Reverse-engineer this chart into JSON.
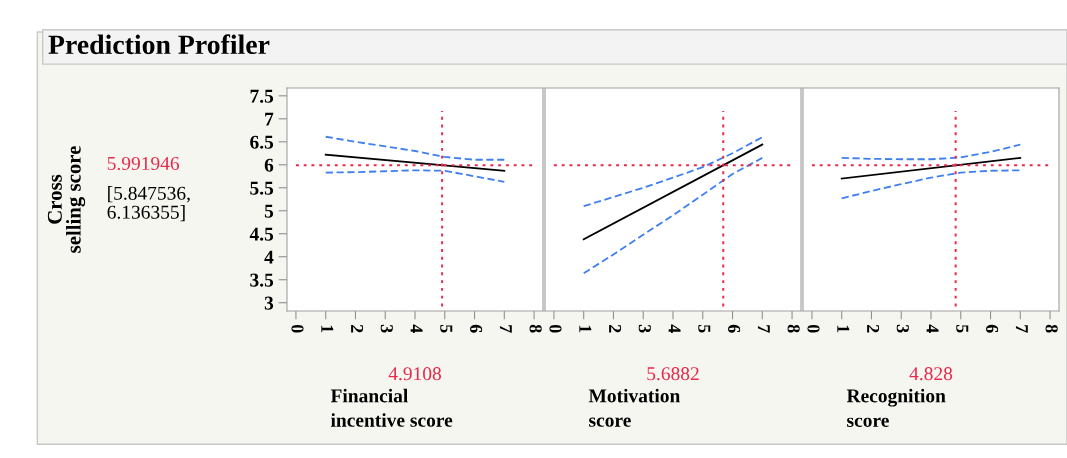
{
  "chart_data": [
    {
      "type": "line",
      "title": "Prediction Profiler",
      "ylabel": "Cross\nselling score",
      "xlabel": "Financial\nincentive score",
      "xlim": [
        -0.3,
        8.3
      ],
      "xticks": [
        0,
        1,
        2,
        3,
        4,
        5,
        6,
        7,
        8
      ],
      "ylim": [
        2.82,
        7.67
      ],
      "yticks": [
        3,
        3.5,
        4,
        4.5,
        5,
        5.5,
        6,
        6.5,
        7,
        7.5
      ],
      "series": [
        {
          "x": [
            1,
            7
          ],
          "values": [
            6.22,
            5.87
          ],
          "color": "#000000",
          "line_style": "solid"
        },
        {
          "x": [
            1,
            2,
            3,
            4,
            5,
            6,
            7
          ],
          "values": [
            6.61,
            6.5,
            6.4,
            6.3,
            6.17,
            6.11,
            6.11
          ],
          "color": "#3f7ff0",
          "line_style": "dashed"
        },
        {
          "x": [
            1,
            2,
            3,
            4,
            5,
            6,
            7
          ],
          "values": [
            5.83,
            5.84,
            5.86,
            5.88,
            5.87,
            5.75,
            5.63
          ],
          "color": "#3f7ff0",
          "line_style": "dashed"
        }
      ],
      "ref_lines": [
        {
          "axis": "x",
          "value": 4.9108,
          "label": "4.9108",
          "color": "#e8294a",
          "line_style": "dotted"
        },
        {
          "axis": "y",
          "value": 5.991946,
          "label": "5.991946",
          "color": "#e8294a",
          "line_style": "dotted"
        }
      ],
      "annotations": [
        "[5.847536,\n6.136355]"
      ],
      "grid": false,
      "legend": false
    },
    {
      "type": "line",
      "xlabel": "Motivation\nscore",
      "tick_labels": "x",
      "xlim": [
        -0.3,
        8.3
      ],
      "xticks": [
        0,
        1,
        2,
        3,
        4,
        5,
        6,
        7,
        8
      ],
      "ylim": [
        2.82,
        7.67
      ],
      "series": [
        {
          "x": [
            1,
            7
          ],
          "values": [
            4.38,
            6.44
          ],
          "color": "#000000",
          "line_style": "solid"
        },
        {
          "x": [
            1,
            2,
            3,
            4,
            5,
            6,
            7
          ],
          "values": [
            5.1,
            5.3,
            5.5,
            5.72,
            5.95,
            6.25,
            6.6
          ],
          "color": "#3f7ff0",
          "line_style": "dashed"
        },
        {
          "x": [
            1,
            2,
            3,
            4,
            5,
            6,
            7
          ],
          "values": [
            3.64,
            4.05,
            4.48,
            4.9,
            5.35,
            5.8,
            6.15
          ],
          "color": "#3f7ff0",
          "line_style": "dashed"
        }
      ],
      "ref_lines": [
        {
          "axis": "x",
          "value": 5.6882,
          "label": "5.6882",
          "color": "#e8294a",
          "line_style": "dotted"
        },
        {
          "axis": "y",
          "value": 5.991946,
          "color": "#e8294a",
          "line_style": "dotted"
        }
      ],
      "grid": false,
      "legend": false
    },
    {
      "type": "line",
      "xlabel": "Recognition\nscore",
      "tick_labels": "x",
      "xlim": [
        -0.3,
        8.3
      ],
      "xticks": [
        0,
        1,
        2,
        3,
        4,
        5,
        6,
        7,
        8
      ],
      "ylim": [
        2.82,
        7.67
      ],
      "series": [
        {
          "x": [
            1,
            7
          ],
          "values": [
            5.7,
            6.15
          ],
          "color": "#000000",
          "line_style": "solid"
        },
        {
          "x": [
            1,
            2,
            3,
            4,
            5,
            6,
            7
          ],
          "values": [
            6.15,
            6.13,
            6.12,
            6.12,
            6.16,
            6.28,
            6.44
          ],
          "color": "#3f7ff0",
          "line_style": "dashed"
        },
        {
          "x": [
            1,
            2,
            3,
            4,
            5,
            6,
            7
          ],
          "values": [
            5.27,
            5.43,
            5.58,
            5.72,
            5.83,
            5.87,
            5.88
          ],
          "color": "#3f7ff0",
          "line_style": "dashed"
        }
      ],
      "ref_lines": [
        {
          "axis": "x",
          "value": 4.828,
          "label": "4.828",
          "color": "#e8294a",
          "line_style": "dotted"
        },
        {
          "axis": "y",
          "value": 5.991946,
          "color": "#e8294a",
          "line_style": "dotted"
        }
      ],
      "grid": false,
      "legend": false
    }
  ]
}
